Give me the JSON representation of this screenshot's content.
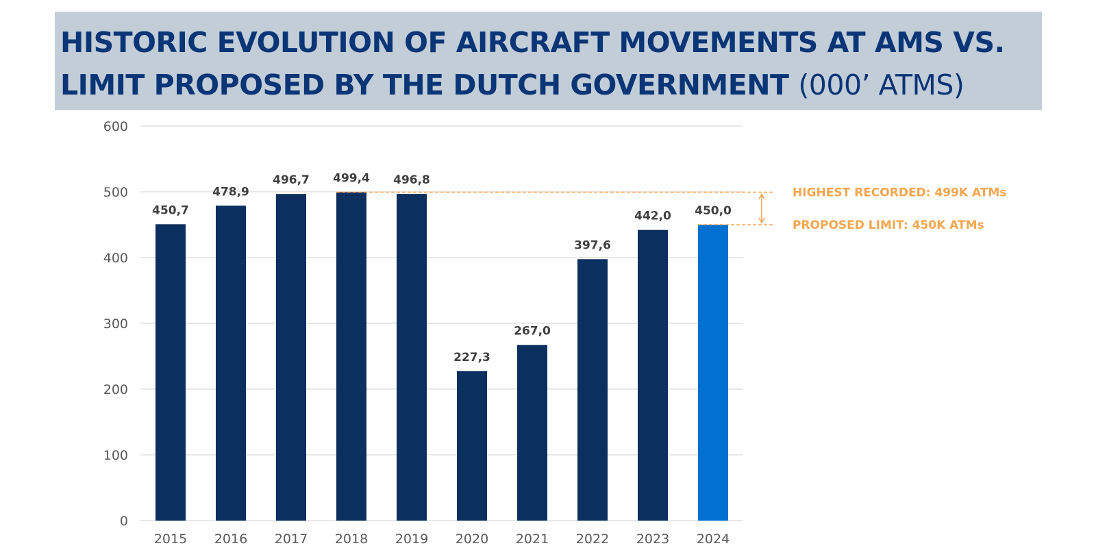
{
  "title": {
    "line1": "HISTORIC EVOLUTION OF AIRCRAFT MOVEMENTS AT AMS VS.",
    "line2": "LIMIT PROPOSED BY THE DUTCH GOVERNMENT",
    "unit": "(000’ ATMS)"
  },
  "chart_data": {
    "type": "bar",
    "categories": [
      "2015",
      "2016",
      "2017",
      "2018",
      "2019",
      "2020",
      "2021",
      "2022",
      "2023",
      "2024"
    ],
    "values": [
      450.7,
      478.9,
      496.7,
      499.4,
      496.8,
      227.3,
      267.0,
      397.6,
      442.0,
      450.0
    ],
    "data_labels": [
      "450,7",
      "478,9",
      "496,7",
      "499,4",
      "496,8",
      "227,3",
      "267,0",
      "397,6",
      "442,0",
      "450,0"
    ],
    "ylim": [
      0,
      600
    ],
    "yticks": [
      0,
      100,
      200,
      300,
      400,
      500,
      600
    ],
    "grid": true,
    "colors": {
      "bar": "#0b2f5f",
      "highlight": "#0270d0",
      "annotation": "#f5a651"
    },
    "highlight_category": "2024",
    "reference_lines": [
      {
        "label": "HIGHEST RECORDED: 499K ATMs",
        "value": 499.4,
        "from_category": "2018"
      },
      {
        "label": "PROPOSED LIMIT: 450K ATMs",
        "value": 450.0,
        "from_category": "2024"
      }
    ]
  }
}
